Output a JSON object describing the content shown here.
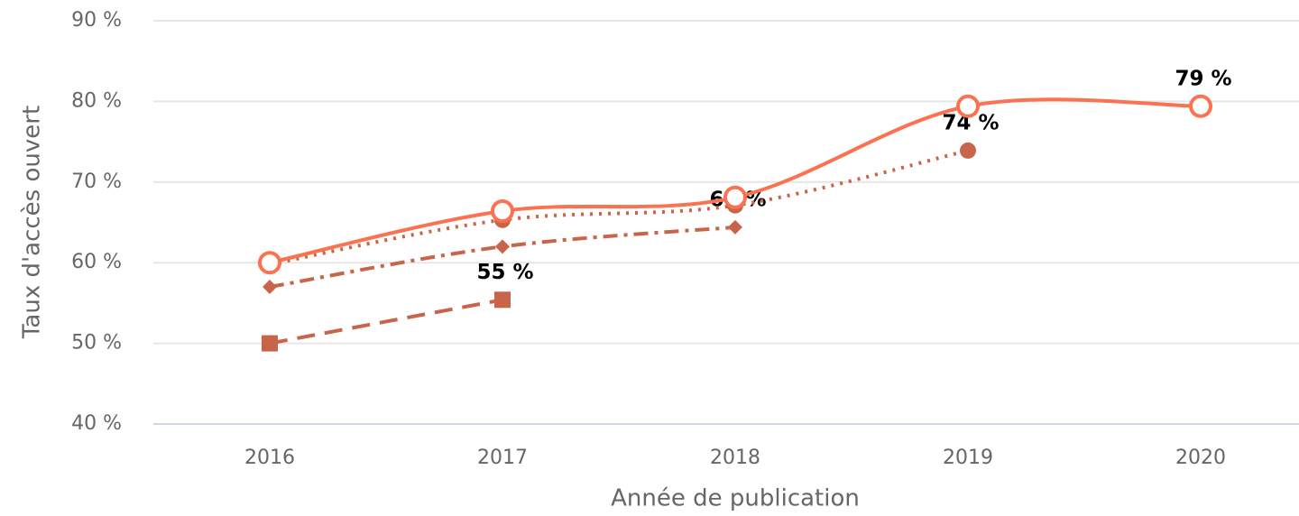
{
  "chart_data": {
    "type": "line",
    "x_label": "Année de publication",
    "y_label": "Taux d'accès ouvert",
    "categories": [
      "2016",
      "2017",
      "2018",
      "2019",
      "2020"
    ],
    "ylim": [
      40,
      90
    ],
    "yticks": [
      {
        "value": 40,
        "label": "40 %"
      },
      {
        "value": 50,
        "label": "50 %"
      },
      {
        "value": 60,
        "label": "60 %"
      },
      {
        "value": 70,
        "label": "70 %"
      },
      {
        "value": 80,
        "label": "80 %"
      },
      {
        "value": 90,
        "label": "90 %"
      }
    ],
    "grid": true,
    "series": [
      {
        "color": "#fa7250",
        "values": [
          60.0,
          66.4,
          68.1,
          79.4,
          79.4
        ],
        "value_labels": [
          null,
          null,
          null,
          null,
          "79 %"
        ]
      },
      {
        "color": "#c8644a",
        "values": [
          59.8,
          65.3,
          67.1,
          73.9,
          null
        ],
        "value_labels": [
          null,
          null,
          null,
          "74 %",
          null
        ]
      },
      {
        "color": "#c8644a",
        "values": [
          57.0,
          62.0,
          64.4,
          null,
          null
        ],
        "value_labels": [
          null,
          null,
          "64 %",
          null,
          null
        ]
      },
      {
        "color": "#c8644a",
        "values": [
          50.0,
          55.4,
          null,
          null,
          null
        ],
        "value_labels": [
          null,
          "55 %",
          null,
          null,
          null
        ]
      }
    ]
  }
}
